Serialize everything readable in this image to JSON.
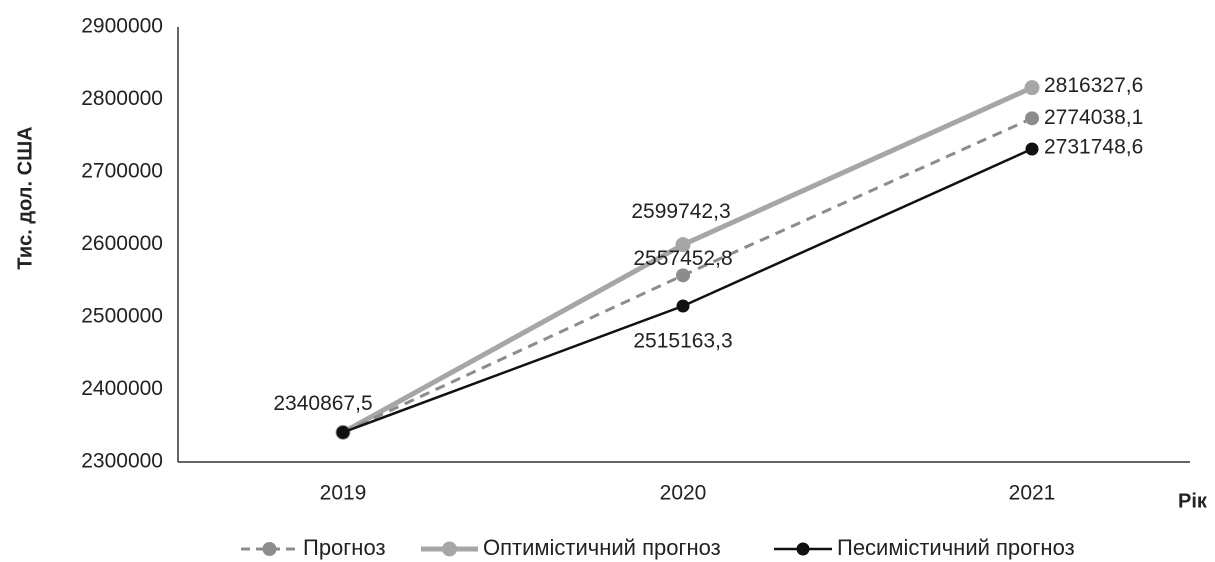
{
  "chart_data": {
    "type": "line",
    "title": "",
    "xlabel": "Рік",
    "ylabel": "Тис. дол. США",
    "categories": [
      "2019",
      "2020",
      "2021"
    ],
    "ylim": [
      2300000,
      2900000
    ],
    "yticks": [
      2300000,
      2400000,
      2500000,
      2600000,
      2700000,
      2800000,
      2900000
    ],
    "grid": false,
    "legend_position": "bottom",
    "series": [
      {
        "name": "Прогноз",
        "values": [
          2340867.5,
          2557452.8,
          2774038.1
        ],
        "labels": [
          "2340867,5",
          "2557452,8",
          "2774038,1"
        ],
        "color": "#8c8c8c",
        "style": "dashed"
      },
      {
        "name": "Оптимістичний прогноз",
        "values": [
          2340867.5,
          2599742.3,
          2816327.6
        ],
        "labels": [
          "",
          "2599742,3",
          "2816327,6"
        ],
        "color": "#a6a6a6",
        "style": "solid-thick"
      },
      {
        "name": "Песимістичний прогноз",
        "values": [
          2340867.5,
          2515163.3,
          2731748.6
        ],
        "labels": [
          "",
          "2515163,3",
          "2731748,6"
        ],
        "color": "#111111",
        "style": "solid"
      }
    ]
  }
}
